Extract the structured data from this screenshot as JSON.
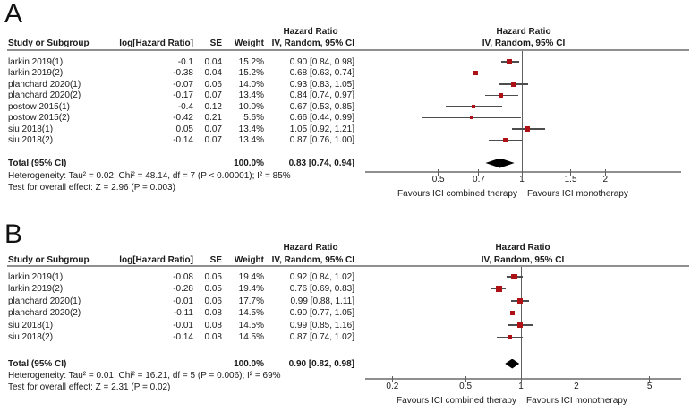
{
  "colors": {
    "marker": "#ad1116",
    "ci_line": "#4d4d4d",
    "diamond": "#000000",
    "rule": "#8f8f8f",
    "text": "#1a1a1a"
  },
  "chart_data": [
    {
      "type": "forest",
      "scale": "log",
      "panel_label": "A",
      "effect_header": "Hazard Ratio",
      "method_header": "IV, Random, 95% CI",
      "columns": [
        "Study or Subgroup",
        "log[Hazard Ratio]",
        "SE",
        "Weight",
        "IV, Random, 95% CI"
      ],
      "studies": [
        {
          "name": "larkin 2019(1)",
          "log_hr": "-0.1",
          "se": "0.04",
          "weight": "15.2%",
          "weight_value": 15.2,
          "hr": 0.9,
          "ci_low": 0.84,
          "ci_high": 0.98,
          "ci_text": "0.90 [0.84, 0.98]"
        },
        {
          "name": "larkin 2019(2)",
          "log_hr": "-0.38",
          "se": "0.04",
          "weight": "15.2%",
          "weight_value": 15.2,
          "hr": 0.68,
          "ci_low": 0.63,
          "ci_high": 0.74,
          "ci_text": "0.68 [0.63, 0.74]"
        },
        {
          "name": "planchard 2020(1)",
          "log_hr": "-0.07",
          "se": "0.06",
          "weight": "14.0%",
          "weight_value": 14.0,
          "hr": 0.93,
          "ci_low": 0.83,
          "ci_high": 1.05,
          "ci_text": "0.93 [0.83, 1.05]"
        },
        {
          "name": "planchard 2020(2)",
          "log_hr": "-0.17",
          "se": "0.07",
          "weight": "13.4%",
          "weight_value": 13.4,
          "hr": 0.84,
          "ci_low": 0.74,
          "ci_high": 0.97,
          "ci_text": "0.84 [0.74, 0.97]"
        },
        {
          "name": "postow 2015(1)",
          "log_hr": "-0.4",
          "se": "0.12",
          "weight": "10.0%",
          "weight_value": 10.0,
          "hr": 0.67,
          "ci_low": 0.53,
          "ci_high": 0.85,
          "ci_text": "0.67 [0.53, 0.85]"
        },
        {
          "name": "postow 2015(2)",
          "log_hr": "-0.42",
          "se": "0.21",
          "weight": "5.6%",
          "weight_value": 5.6,
          "hr": 0.66,
          "ci_low": 0.44,
          "ci_high": 0.99,
          "ci_text": "0.66 [0.44, 0.99]"
        },
        {
          "name": "siu 2018(1)",
          "log_hr": "0.05",
          "se": "0.07",
          "weight": "13.4%",
          "weight_value": 13.4,
          "hr": 1.05,
          "ci_low": 0.92,
          "ci_high": 1.21,
          "ci_text": "1.05 [0.92, 1.21]"
        },
        {
          "name": "siu 2018(2)",
          "log_hr": "-0.14",
          "se": "0.07",
          "weight": "13.4%",
          "weight_value": 13.4,
          "hr": 0.87,
          "ci_low": 0.76,
          "ci_high": 1.0,
          "ci_text": "0.87 [0.76, 1.00]"
        }
      ],
      "total": {
        "label": "Total (95% CI)",
        "weight": "100.0%",
        "hr": 0.83,
        "ci_low": 0.74,
        "ci_high": 0.94,
        "ci_text": "0.83 [0.74, 0.94]"
      },
      "heterogeneity": "Heterogeneity: Tau² = 0.02; Chi² = 48.14, df = 7 (P < 0.00001); I² = 85%",
      "overall_effect": "Test for overall effect: Z = 2.96 (P = 0.003)",
      "axis_ticks": [
        0.5,
        0.7,
        1,
        1.5,
        2
      ],
      "favours_left": "Favours ICI combined therapy",
      "favours_right": "Favours ICI monotherapy"
    },
    {
      "type": "forest",
      "scale": "log",
      "panel_label": "B",
      "effect_header": "Hazard Ratio",
      "method_header": "IV, Random, 95% CI",
      "columns": [
        "Study or Subgroup",
        "log[Hazard Ratio]",
        "SE",
        "Weight",
        "IV, Random, 95% CI"
      ],
      "studies": [
        {
          "name": "larkin 2019(1)",
          "log_hr": "-0.08",
          "se": "0.05",
          "weight": "19.4%",
          "weight_value": 19.4,
          "hr": 0.92,
          "ci_low": 0.84,
          "ci_high": 1.02,
          "ci_text": "0.92 [0.84, 1.02]"
        },
        {
          "name": "larkin 2019(2)",
          "log_hr": "-0.28",
          "se": "0.05",
          "weight": "19.4%",
          "weight_value": 19.4,
          "hr": 0.76,
          "ci_low": 0.69,
          "ci_high": 0.83,
          "ci_text": "0.76 [0.69, 0.83]"
        },
        {
          "name": "planchard 2020(1)",
          "log_hr": "-0.01",
          "se": "0.06",
          "weight": "17.7%",
          "weight_value": 17.7,
          "hr": 0.99,
          "ci_low": 0.88,
          "ci_high": 1.11,
          "ci_text": "0.99 [0.88, 1.11]"
        },
        {
          "name": "planchard 2020(2)",
          "log_hr": "-0.11",
          "se": "0.08",
          "weight": "14.5%",
          "weight_value": 14.5,
          "hr": 0.9,
          "ci_low": 0.77,
          "ci_high": 1.05,
          "ci_text": "0.90 [0.77, 1.05]"
        },
        {
          "name": "siu 2018(1)",
          "log_hr": "-0.01",
          "se": "0.08",
          "weight": "14.5%",
          "weight_value": 14.5,
          "hr": 0.99,
          "ci_low": 0.85,
          "ci_high": 1.16,
          "ci_text": "0.99 [0.85, 1.16]"
        },
        {
          "name": "siu 2018(2)",
          "log_hr": "-0.14",
          "se": "0.08",
          "weight": "14.5%",
          "weight_value": 14.5,
          "hr": 0.87,
          "ci_low": 0.74,
          "ci_high": 1.02,
          "ci_text": "0.87 [0.74, 1.02]"
        }
      ],
      "total": {
        "label": "Total (95% CI)",
        "weight": "100.0%",
        "hr": 0.9,
        "ci_low": 0.82,
        "ci_high": 0.98,
        "ci_text": "0.90 [0.82, 0.98]"
      },
      "heterogeneity": "Heterogeneity: Tau² = 0.01; Chi² = 16.21, df = 5 (P = 0.006); I² = 69%",
      "overall_effect": "Test for overall effect: Z = 2.31 (P = 0.02)",
      "axis_ticks": [
        0.2,
        0.5,
        1,
        2,
        5
      ],
      "favours_left": "Favours ICI combined therapy",
      "favours_right": "Favours ICI monotherapy"
    }
  ]
}
